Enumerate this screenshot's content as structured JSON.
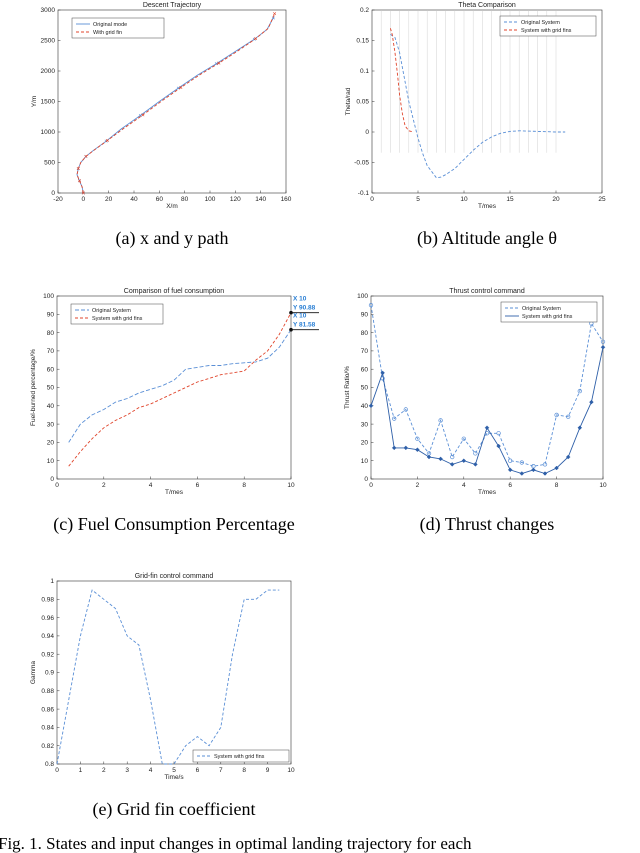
{
  "figure_caption": "Fig. 1.    States and input changes in optimal landing trajectory for each",
  "chart_data": [
    {
      "type": "line",
      "id": "a",
      "title": "Descent Trajectory",
      "xlabel": "X/m",
      "ylabel": "Y/m",
      "xlim": [
        -20,
        160
      ],
      "ylim": [
        0,
        3000
      ],
      "xticks": [
        -20,
        0,
        20,
        40,
        60,
        80,
        100,
        120,
        140,
        160
      ],
      "yticks": [
        0,
        500,
        1000,
        1500,
        2000,
        2500,
        3000
      ],
      "legend": [
        "Original mode",
        "With grid fin"
      ],
      "legend_position": "top-left",
      "caption": "(a) x and y path",
      "series": [
        {
          "name": "Original mode",
          "color": "#5a8fd6",
          "dash": "none",
          "x": [
            0,
            -1,
            -3,
            -5,
            -4,
            -2,
            2,
            8,
            18,
            30,
            45,
            60,
            75,
            90,
            105,
            120,
            135,
            145,
            150
          ],
          "y": [
            0,
            100,
            200,
            300,
            400,
            500,
            600,
            700,
            850,
            1050,
            1270,
            1500,
            1720,
            1930,
            2120,
            2320,
            2520,
            2680,
            2870
          ]
        },
        {
          "name": "With grid fin",
          "color": "#e0452c",
          "dash": "3,2",
          "x": [
            0,
            -1,
            -3,
            -5,
            -4,
            -2,
            2,
            9,
            19,
            32,
            47,
            62,
            77,
            92,
            107,
            122,
            136,
            146,
            151
          ],
          "y": [
            0,
            100,
            200,
            300,
            400,
            500,
            600,
            710,
            860,
            1060,
            1280,
            1510,
            1730,
            1940,
            2130,
            2330,
            2530,
            2700,
            2940
          ]
        }
      ]
    },
    {
      "type": "line",
      "id": "b",
      "title": "Theta Comparison",
      "xlabel": "T/mes",
      "ylabel": "Theta/rad",
      "xlim": [
        0,
        25
      ],
      "ylim": [
        -0.1,
        0.2
      ],
      "xticks": [
        0,
        5,
        10,
        15,
        20,
        25
      ],
      "yticks": [
        -0.1,
        -0.05,
        0,
        0.05,
        0.1,
        0.15,
        0.2
      ],
      "ytick_labels": [
        "-0.1",
        "-0.05",
        "0",
        "0.05",
        "0.1",
        "0.15",
        "0.2"
      ],
      "legend": [
        "Original System",
        "System with grid fins"
      ],
      "legend_position": "top-right",
      "caption": "(b) Altitude angle θ",
      "series": [
        {
          "name": "Original System",
          "color": "#5a8fd6",
          "dash": "3,2",
          "x": [
            2,
            2.5,
            3,
            3.5,
            4,
            4.5,
            5,
            5.5,
            6,
            6.5,
            7,
            7.5,
            8,
            9,
            10,
            11,
            12,
            13,
            14,
            15,
            16,
            18,
            20,
            21
          ],
          "y": [
            0.16,
            0.155,
            0.13,
            0.09,
            0.05,
            0.02,
            -0.01,
            -0.035,
            -0.055,
            -0.065,
            -0.075,
            -0.074,
            -0.07,
            -0.06,
            -0.045,
            -0.03,
            -0.017,
            -0.008,
            -0.002,
            0.001,
            0.002,
            0.001,
            0,
            0
          ]
        },
        {
          "name": "System with grid fins",
          "color": "#e0452c",
          "dash": "3,2",
          "x": [
            2,
            2.2,
            2.5,
            2.8,
            3,
            3.3,
            3.6,
            4,
            4.5
          ],
          "y": [
            0.17,
            0.16,
            0.13,
            0.09,
            0.06,
            0.03,
            0.01,
            0.002,
            0
          ]
        }
      ]
    },
    {
      "type": "line",
      "id": "c",
      "title": "Comparison of fuel consumption",
      "xlabel": "T/mes",
      "ylabel": "Fuel-burned percentage/%",
      "xlim": [
        0,
        10
      ],
      "ylim": [
        0,
        100
      ],
      "xticks": [
        0,
        2,
        4,
        6,
        8,
        10
      ],
      "yticks": [
        0,
        10,
        20,
        30,
        40,
        50,
        60,
        70,
        80,
        90,
        100
      ],
      "legend": [
        "Original System",
        "System with grid fins"
      ],
      "legend_position": "top-left",
      "caption": "(c) Fuel Consumption Percentage",
      "datatips": [
        {
          "line1": "X 10",
          "line2": "Y 90.88"
        },
        {
          "line1": "X 10",
          "line2": "Y 81.58"
        }
      ],
      "series": [
        {
          "name": "Original System",
          "color": "#5a8fd6",
          "dash": "4,2",
          "x": [
            0.5,
            1,
            1.5,
            2,
            2.5,
            3,
            3.5,
            4,
            4.5,
            5,
            5.5,
            6,
            6.5,
            7,
            7.5,
            8,
            8.5,
            9,
            9.5,
            10
          ],
          "y": [
            20,
            30,
            35,
            38,
            42,
            44,
            47,
            49,
            51,
            54,
            60,
            61,
            62,
            62,
            63,
            63.5,
            64,
            66,
            72,
            81.58
          ]
        },
        {
          "name": "System with grid fins",
          "color": "#e0452c",
          "dash": "3,2",
          "x": [
            0.5,
            1,
            1.5,
            2,
            2.5,
            3,
            3.5,
            4,
            4.5,
            5,
            5.5,
            6,
            6.5,
            7,
            7.5,
            8,
            8.5,
            9,
            9.5,
            10
          ],
          "y": [
            7,
            15,
            22,
            28,
            32,
            35,
            39,
            41,
            44,
            47,
            50,
            53,
            55,
            57,
            58,
            59,
            65,
            70,
            79,
            90.88
          ]
        }
      ]
    },
    {
      "type": "line",
      "id": "d",
      "title": "Thrust control command",
      "xlabel": "T/mes",
      "ylabel": "Thrust Ratio/%",
      "xlim": [
        0,
        10
      ],
      "ylim": [
        0,
        100
      ],
      "xticks": [
        0,
        2,
        4,
        6,
        8,
        10
      ],
      "yticks": [
        0,
        10,
        20,
        30,
        40,
        50,
        60,
        70,
        80,
        90,
        100
      ],
      "legend": [
        "Original System",
        "System with grid fins"
      ],
      "legend_position": "top-right",
      "caption": "(d) Thrust changes",
      "series": [
        {
          "name": "Original System",
          "color": "#5a8fd6",
          "dash": "3,2",
          "marker": "circle",
          "x": [
            0,
            0.5,
            1,
            1.5,
            2,
            2.5,
            3,
            3.5,
            4,
            4.5,
            5,
            5.5,
            6,
            6.5,
            7,
            7.5,
            8,
            8.5,
            9,
            9.5,
            10
          ],
          "y": [
            95,
            55,
            33,
            38,
            22,
            14,
            32,
            12,
            22,
            14,
            25,
            25,
            10,
            9,
            7,
            8,
            35,
            34,
            48,
            85,
            75
          ]
        },
        {
          "name": "System with grid fins",
          "color": "#2e5fa8",
          "dash": "none",
          "marker": "diamond",
          "x": [
            0,
            0.5,
            1,
            1.5,
            2,
            2.5,
            3,
            3.5,
            4,
            4.5,
            5,
            5.5,
            6,
            6.5,
            7,
            7.5,
            8,
            8.5,
            9,
            9.5,
            10
          ],
          "y": [
            40,
            58,
            17,
            17,
            16,
            12,
            11,
            8,
            10,
            8,
            28,
            18,
            5,
            3,
            5,
            3,
            6,
            12,
            28,
            42,
            72
          ]
        }
      ]
    },
    {
      "type": "line",
      "id": "e",
      "title": "Grid-fin control command",
      "xlabel": "Time/s",
      "ylabel": "Gamma",
      "xlim": [
        0,
        10
      ],
      "ylim": [
        0.8,
        1
      ],
      "xticks": [
        0,
        1,
        2,
        3,
        4,
        5,
        6,
        7,
        8,
        9,
        10
      ],
      "yticks": [
        0.8,
        0.82,
        0.84,
        0.86,
        0.88,
        0.9,
        0.92,
        0.94,
        0.96,
        0.98,
        1
      ],
      "ytick_labels": [
        "0.8",
        "0.82",
        "0.84",
        "0.86",
        "0.88",
        "0.9",
        "0.92",
        "0.94",
        "0.96",
        "0.98",
        "1"
      ],
      "legend": [
        "System with grid fins"
      ],
      "legend_position": "bottom-right",
      "caption": "(e) Grid fin coefficient",
      "series": [
        {
          "name": "System with grid fins",
          "color": "#5a8fd6",
          "dash": "3,2",
          "x": [
            0,
            0.5,
            1,
            1.5,
            2,
            2.5,
            3,
            3.5,
            4,
            4.5,
            5,
            5.5,
            6,
            6.5,
            7,
            7.5,
            8,
            8.5,
            9,
            9.5
          ],
          "y": [
            0.8,
            0.87,
            0.94,
            0.99,
            0.98,
            0.97,
            0.94,
            0.93,
            0.87,
            0.8,
            0.8,
            0.82,
            0.83,
            0.82,
            0.84,
            0.92,
            0.98,
            0.98,
            0.99,
            0.99
          ]
        }
      ]
    }
  ]
}
